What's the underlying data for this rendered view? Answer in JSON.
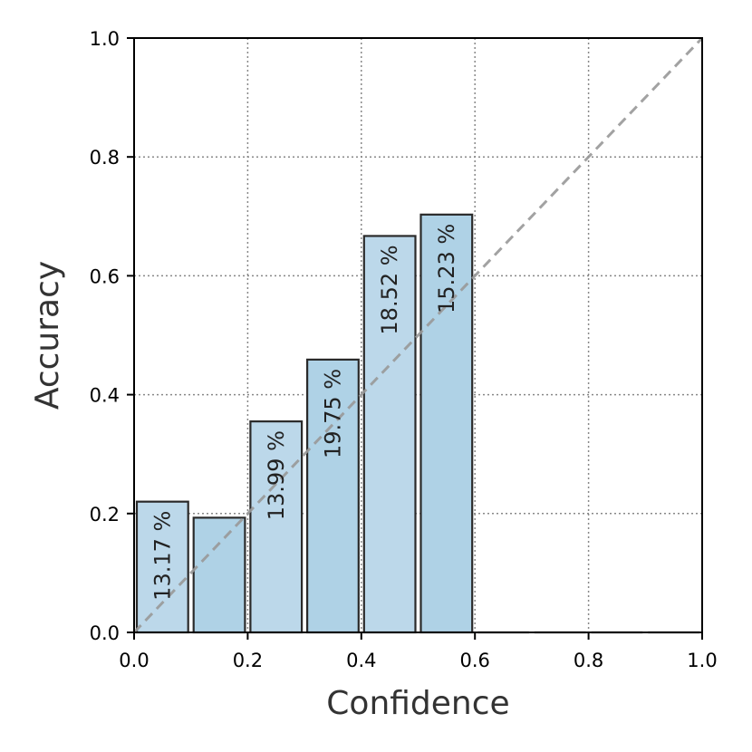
{
  "chart_data": {
    "type": "bar",
    "xlabel": "Confidence",
    "ylabel": "Accuracy",
    "xlim": [
      0.0,
      1.0
    ],
    "ylim": [
      0.0,
      1.0
    ],
    "xticks": [
      "0.0",
      "0.2",
      "0.4",
      "0.6",
      "0.8",
      "1.0"
    ],
    "yticks": [
      "0.0",
      "0.2",
      "0.4",
      "0.6",
      "0.8",
      "1.0"
    ],
    "grid": true,
    "bins": [
      {
        "x0": 0.0,
        "x1": 0.1,
        "value": 0.22,
        "label": "13.17 %"
      },
      {
        "x0": 0.1,
        "x1": 0.2,
        "value": 0.193,
        "label": ""
      },
      {
        "x0": 0.2,
        "x1": 0.3,
        "value": 0.355,
        "label": "13.99 %"
      },
      {
        "x0": 0.3,
        "x1": 0.4,
        "value": 0.459,
        "label": "19.75 %"
      },
      {
        "x0": 0.4,
        "x1": 0.5,
        "value": 0.667,
        "label": "18.52 %"
      },
      {
        "x0": 0.5,
        "x1": 0.6,
        "value": 0.703,
        "label": "15.23 %"
      },
      {
        "x0": 0.6,
        "x1": 0.7,
        "value": 0.0,
        "label": ""
      },
      {
        "x0": 0.7,
        "x1": 0.8,
        "value": 0.0,
        "label": ""
      },
      {
        "x0": 0.8,
        "x1": 0.9,
        "value": 0.0,
        "label": ""
      },
      {
        "x0": 0.9,
        "x1": 1.0,
        "value": 0.0,
        "label": ""
      }
    ],
    "reference_line": {
      "from": [
        0.0,
        0.0
      ],
      "to": [
        1.0,
        1.0
      ],
      "style": "dashed"
    },
    "colors": {
      "bar_light": "#bcd8ea",
      "bar_dark": "#afd2e6",
      "edge": "#2a2a2a",
      "diagonal": "#999999",
      "grid": "#888888"
    }
  }
}
